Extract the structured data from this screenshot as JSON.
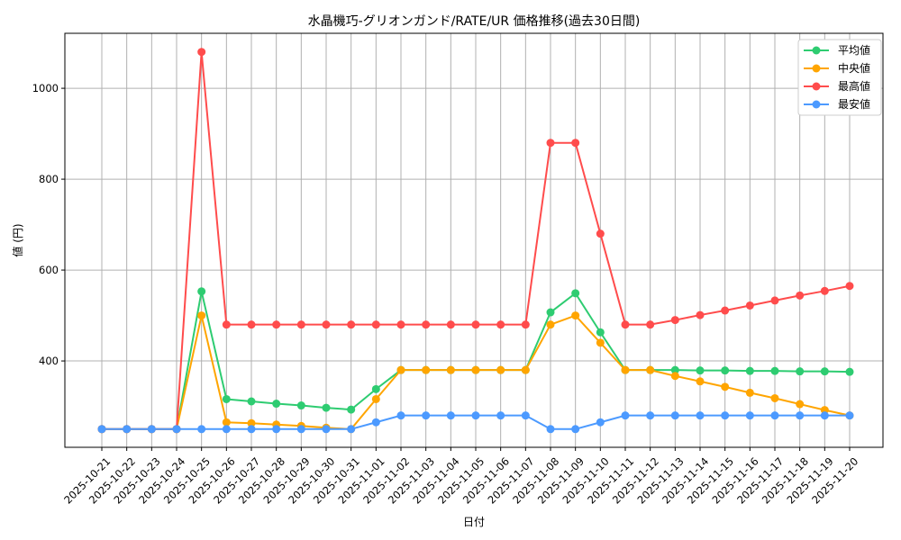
{
  "chart_data": {
    "type": "line",
    "title": "水晶機巧-グリオンガンド/RATE/UR 価格推移(過去30日間)",
    "xlabel": "日付",
    "ylabel": "値 (円)",
    "ylim": [
      210,
      1121
    ],
    "yticks": [
      400,
      600,
      800,
      1000
    ],
    "grid": true,
    "legend_position": "top-right",
    "x": [
      "2025-10-21",
      "2025-10-22",
      "2025-10-23",
      "2025-10-24",
      "2025-10-25",
      "2025-10-26",
      "2025-10-27",
      "2025-10-28",
      "2025-10-29",
      "2025-10-30",
      "2025-10-31",
      "2025-11-01",
      "2025-11-02",
      "2025-11-03",
      "2025-11-04",
      "2025-11-05",
      "2025-11-06",
      "2025-11-07",
      "2025-11-08",
      "2025-11-09",
      "2025-11-10",
      "2025-11-11",
      "2025-11-12",
      "2025-11-13",
      "2025-11-14",
      "2025-11-15",
      "2025-11-16",
      "2025-11-17",
      "2025-11-18",
      "2025-11-19",
      "2025-11-20"
    ],
    "series": [
      {
        "name": "平均値",
        "color": "#2ecc71",
        "values": [
          250,
          250,
          250,
          250,
          553,
          316,
          311,
          306,
          302,
          297,
          293,
          338,
          380,
          380,
          380,
          380,
          380,
          380,
          507,
          549,
          463,
          380,
          380,
          380,
          379,
          379,
          378,
          378,
          377,
          377,
          376
        ]
      },
      {
        "name": "中央値",
        "color": "#ffa500",
        "values": [
          250,
          250,
          250,
          250,
          500,
          265,
          263,
          260,
          257,
          253,
          250,
          316,
          380,
          380,
          380,
          380,
          380,
          380,
          480,
          500,
          440,
          380,
          380,
          367,
          355,
          343,
          330,
          318,
          305,
          292,
          280
        ]
      },
      {
        "name": "最高値",
        "color": "#ff4c4c",
        "values": [
          250,
          250,
          250,
          250,
          1080,
          480,
          480,
          480,
          480,
          480,
          480,
          480,
          480,
          480,
          480,
          480,
          480,
          480,
          880,
          880,
          680,
          480,
          480,
          490,
          501,
          511,
          522,
          533,
          544,
          554,
          565
        ]
      },
      {
        "name": "最安値",
        "color": "#4c9aff",
        "values": [
          250,
          250,
          250,
          250,
          250,
          250,
          250,
          250,
          250,
          250,
          250,
          265,
          280,
          280,
          280,
          280,
          280,
          280,
          250,
          250,
          265,
          280,
          280,
          280,
          280,
          280,
          280,
          280,
          280,
          280,
          280
        ]
      }
    ]
  }
}
